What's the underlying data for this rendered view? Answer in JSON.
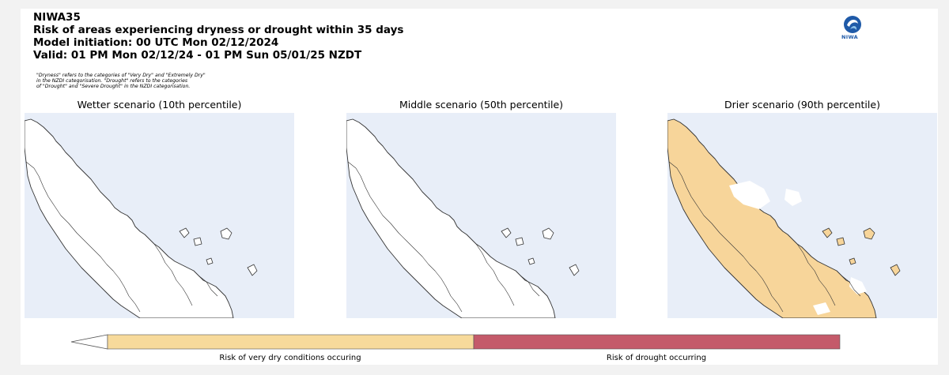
{
  "header": {
    "product": "NIWA35",
    "title": "Risk of areas experiencing dryness or drought within 35 days",
    "initiation": "Model initiation: 00 UTC Mon 02/12/2024",
    "valid": "Valid: 01 PM Mon 02/12/24 - 01 PM Sun 05/01/25 NZDT"
  },
  "note": {
    "line1": "\"Dryness\" refers to the categories of \"Very Dry\" and \"Extremely Dry\"",
    "line2": "in the NZDI categorisation. \"Drought\" refers to the categories",
    "line3": "of \"Drought\" and \"Severe Drought\" in the NZDI categorisation."
  },
  "logo": {
    "text": "NIWA",
    "icon": "niwa-logo-icon"
  },
  "panels": [
    {
      "title": "Wetter scenario (10th percentile)",
      "coverage": "none"
    },
    {
      "title": "Middle scenario (50th percentile)",
      "coverage": "none"
    },
    {
      "title": "Drier scenario (90th percentile)",
      "coverage": "widespread very dry risk"
    }
  ],
  "legend": {
    "items": [
      {
        "label": "Risk of very dry conditions occuring",
        "color": "#f7da9b"
      },
      {
        "label": "Risk of drought occurring",
        "color": "#c45a6a"
      }
    ]
  },
  "colors": {
    "sea": "#e8eef8",
    "land": "#ffffff",
    "coast": "#333333",
    "very_dry": "#f7d59a",
    "drought": "#c45a6a"
  }
}
